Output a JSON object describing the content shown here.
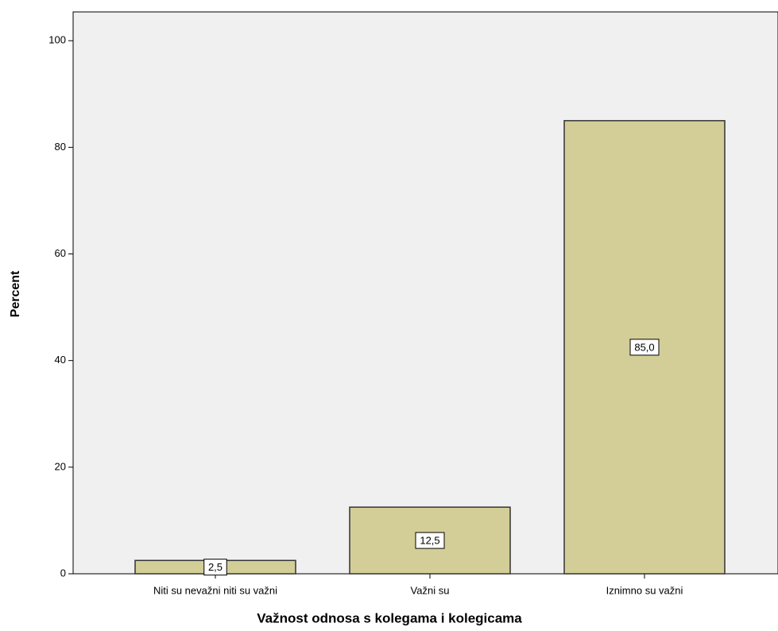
{
  "chart_data": {
    "type": "bar",
    "x_label": "Važnost odnosa s kolegama i kolegicama",
    "y_label": "Percent",
    "categories": [
      "Niti su nevažni niti su važni",
      "Važni su",
      "Iznimno su važni"
    ],
    "values": [
      2.5,
      12.5,
      85.0
    ],
    "value_labels": [
      "2,5",
      "12,5",
      "85,0"
    ],
    "color": "#d3ce97",
    "ylim": [
      0,
      105.4
    ],
    "yticks": [
      0,
      20,
      40,
      60,
      80,
      100
    ]
  }
}
